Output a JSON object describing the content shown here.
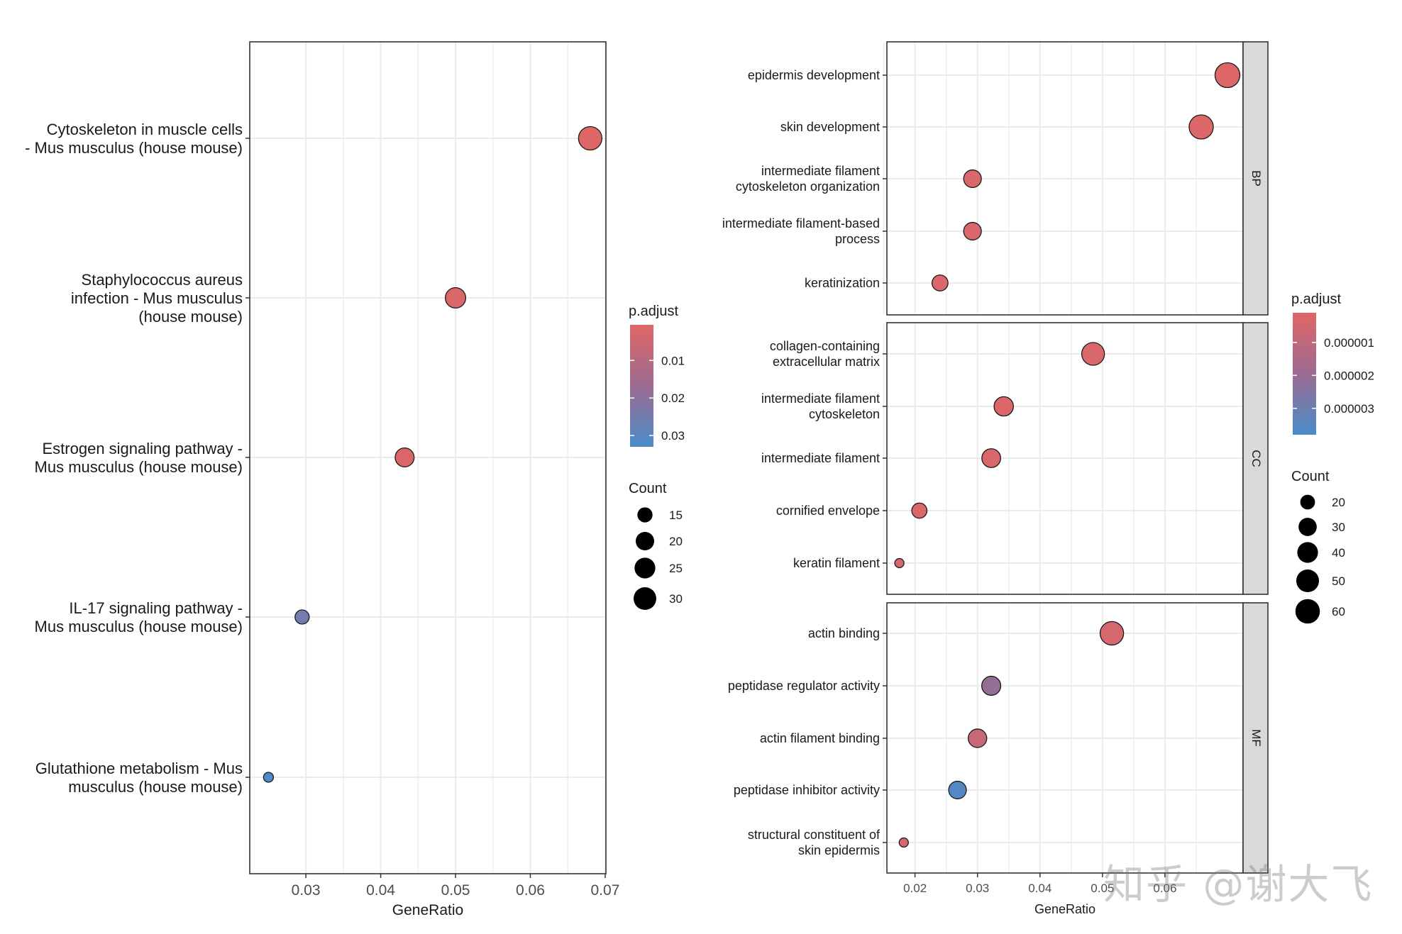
{
  "colors": {
    "high": "#E06666",
    "mid": "#9C6B92",
    "low": "#4A8CC8",
    "grid": "#EBEBEB",
    "strip": "#D9D9D9"
  },
  "watermark": "知乎 @谢大飞",
  "chart_data": [
    {
      "type": "scatter",
      "subtype": "dotplot",
      "title": "",
      "xlabel": "GeneRatio",
      "ylabel": "",
      "xlim": [
        0.0225,
        0.0701
      ],
      "xticks": [
        0.03,
        0.04,
        0.05,
        0.06,
        0.07
      ],
      "xtick_labels": [
        "0.03",
        "0.04",
        "0.05",
        "0.06",
        "0.07"
      ],
      "categories": [
        [
          "Cytoskeleton in muscle cells",
          "- Mus musculus (house mouse)"
        ],
        [
          "Staphylococcus aureus",
          "infection - Mus musculus",
          "(house mouse)"
        ],
        [
          "Estrogen signaling pathway -",
          "Mus musculus (house mouse)"
        ],
        [
          "IL-17 signaling pathway -",
          "Mus musculus (house mouse)"
        ],
        [
          "Glutathione metabolism - Mus",
          "musculus (house mouse)"
        ]
      ],
      "points": [
        {
          "x": 0.068,
          "count": 32,
          "p_adjust": 0.001
        },
        {
          "x": 0.05,
          "count": 24,
          "p_adjust": 0.002
        },
        {
          "x": 0.0432,
          "count": 21,
          "p_adjust": 0.002
        },
        {
          "x": 0.0295,
          "count": 14,
          "p_adjust": 0.025
        },
        {
          "x": 0.025,
          "count": 12,
          "p_adjust": 0.032
        }
      ],
      "color_legend": {
        "title": "p.adjust",
        "range": [
          0.0005,
          0.033
        ],
        "ticks": [
          0.01,
          0.02,
          0.03
        ],
        "tick_labels": [
          "0.01",
          "0.02",
          "0.03"
        ]
      },
      "size_legend": {
        "title": "Count",
        "values": [
          15,
          20,
          25,
          30
        ],
        "labels": [
          "15",
          "20",
          "25",
          "30"
        ]
      }
    },
    {
      "type": "scatter",
      "subtype": "faceted-dotplot",
      "title": "",
      "xlabel": "GeneRatio",
      "ylabel": "",
      "xlim": [
        0.0155,
        0.0725
      ],
      "xticks": [
        0.02,
        0.03,
        0.04,
        0.05,
        0.06
      ],
      "xtick_labels": [
        "0.02",
        "0.03",
        "0.04",
        "0.05",
        "0.06"
      ],
      "facets": [
        {
          "label": "BP",
          "categories": [
            [
              "epidermis development"
            ],
            [
              "skin development"
            ],
            [
              "intermediate filament",
              "cytoskeleton organization"
            ],
            [
              "intermediate filament-based",
              "process"
            ],
            [
              "keratinization"
            ]
          ],
          "points": [
            {
              "x": 0.07,
              "count": 62,
              "p_adjust": 2e-07
            },
            {
              "x": 0.0658,
              "count": 58,
              "p_adjust": 2e-07
            },
            {
              "x": 0.0292,
              "count": 28,
              "p_adjust": 3e-07
            },
            {
              "x": 0.0292,
              "count": 28,
              "p_adjust": 3e-07
            },
            {
              "x": 0.024,
              "count": 23,
              "p_adjust": 3e-07
            }
          ]
        },
        {
          "label": "CC",
          "categories": [
            [
              "collagen-containing",
              "extracellular matrix"
            ],
            [
              "intermediate filament",
              "cytoskeleton"
            ],
            [
              "intermediate filament"
            ],
            [
              "cornified envelope"
            ],
            [
              "keratin filament"
            ]
          ],
          "points": [
            {
              "x": 0.0485,
              "count": 50,
              "p_adjust": 3e-07
            },
            {
              "x": 0.0342,
              "count": 34,
              "p_adjust": 2e-07
            },
            {
              "x": 0.0322,
              "count": 32,
              "p_adjust": 3e-07
            },
            {
              "x": 0.0207,
              "count": 21,
              "p_adjust": 3e-07
            },
            {
              "x": 0.0175,
              "count": 14,
              "p_adjust": 4e-07
            }
          ]
        },
        {
          "label": "MF",
          "categories": [
            [
              "actin binding"
            ],
            [
              "peptidase regulator activity"
            ],
            [
              "actin filament binding"
            ],
            [
              "peptidase inhibitor activity"
            ],
            [
              "structural constituent of",
              "skin epidermis"
            ]
          ],
          "points": [
            {
              "x": 0.0515,
              "count": 54,
              "p_adjust": 4e-07
            },
            {
              "x": 0.0322,
              "count": 33,
              "p_adjust": 2.1e-06
            },
            {
              "x": 0.03,
              "count": 31,
              "p_adjust": 8e-07
            },
            {
              "x": 0.0268,
              "count": 28,
              "p_adjust": 3.6e-06
            },
            {
              "x": 0.0182,
              "count": 14,
              "p_adjust": 4e-07
            }
          ]
        }
      ],
      "color_legend": {
        "title": "p.adjust",
        "range": [
          1e-07,
          3.8e-06
        ],
        "ticks": [
          1e-06,
          2e-06,
          3e-06
        ],
        "tick_labels": [
          "0.000001",
          "0.000002",
          "0.000003"
        ]
      },
      "size_legend": {
        "title": "Count",
        "values": [
          20,
          30,
          40,
          50,
          60
        ],
        "labels": [
          "20",
          "30",
          "40",
          "50",
          "60"
        ]
      }
    }
  ]
}
